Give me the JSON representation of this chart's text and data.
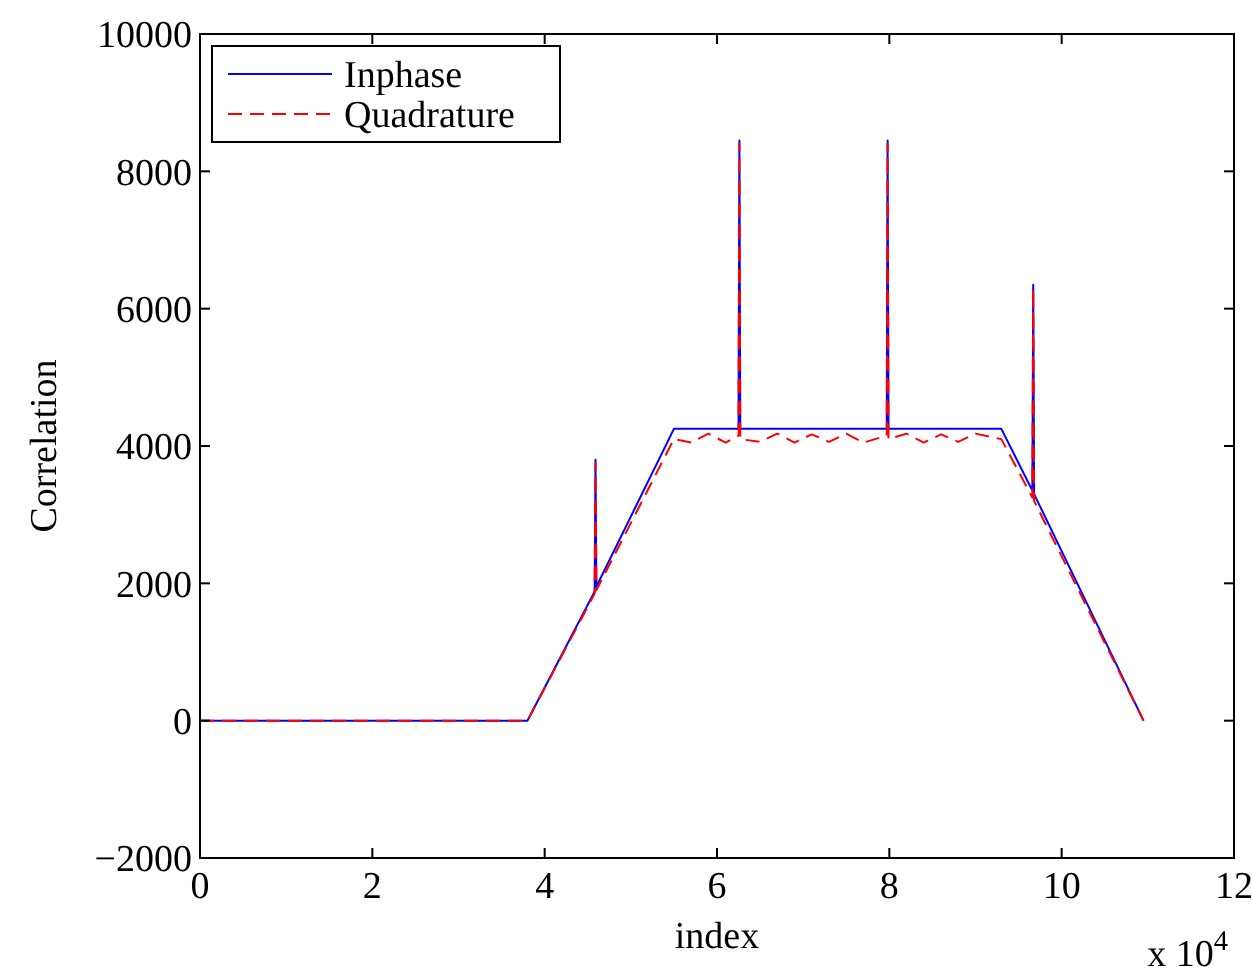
{
  "chart_data": {
    "type": "line",
    "xlabel": "index",
    "ylabel": "Correlation",
    "annotations": [
      "x 10$^{4}$"
    ],
    "xlim": [
      0,
      12
    ],
    "ylim": [
      -2000,
      10000
    ],
    "xticks": [
      0,
      2,
      4,
      6,
      8,
      10,
      12
    ],
    "yticks": [
      {
        "value": -2000,
        "label": "−2000"
      },
      0,
      2000,
      4000,
      6000,
      8000,
      10000
    ],
    "grid": false,
    "legend": "top left",
    "marker": "none",
    "series": [
      {
        "name": "Inphase",
        "color": "#0000ff",
        "line_style": "solid",
        "x": [
          0,
          3.8,
          4.58,
          4.59,
          4.6,
          5.5,
          6.25,
          6.26,
          6.27,
          7.97,
          7.98,
          7.99,
          9.3,
          9.66,
          9.67,
          9.68,
          10.95
        ],
        "values": [
          0,
          0,
          1880,
          3800,
          1950,
          4250,
          4250,
          8450,
          4250,
          4250,
          8450,
          4250,
          4250,
          3350,
          6350,
          3300,
          0
        ]
      },
      {
        "name": "Quadrature",
        "color": "#ff0000",
        "line_style": "dashed",
        "x": [
          0,
          3.8,
          4.58,
          4.59,
          4.6,
          5.5,
          5.7,
          5.9,
          6.1,
          6.25,
          6.26,
          6.27,
          6.5,
          6.7,
          6.9,
          7.1,
          7.3,
          7.5,
          7.7,
          7.97,
          7.98,
          7.99,
          8.2,
          8.4,
          8.6,
          8.8,
          9.0,
          9.3,
          9.66,
          9.67,
          9.68,
          10.95
        ],
        "values": [
          0,
          0,
          1850,
          3750,
          1900,
          4100,
          4050,
          4180,
          4050,
          4150,
          8400,
          4100,
          4060,
          4180,
          4050,
          4170,
          4060,
          4180,
          4050,
          4150,
          8400,
          4100,
          4180,
          4050,
          4170,
          4060,
          4180,
          4100,
          3250,
          6300,
          3200,
          0
        ]
      }
    ]
  }
}
